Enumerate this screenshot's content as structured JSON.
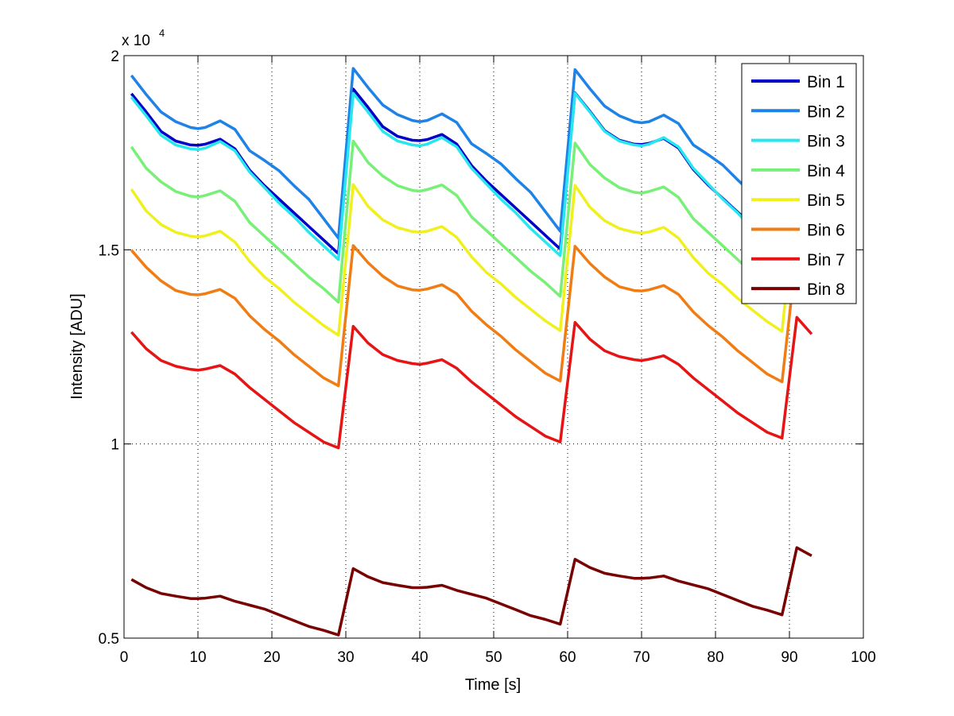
{
  "chart_data": {
    "type": "line",
    "title": "",
    "xlabel": "Time [s]",
    "ylabel": "Intensity [ADU]",
    "y_exponent_label": "x 10",
    "y_exponent_power": "4",
    "xlim": [
      0,
      100
    ],
    "ylim": [
      5000,
      20000
    ],
    "x_ticks": [
      0,
      10,
      20,
      30,
      40,
      50,
      60,
      70,
      80,
      90,
      100
    ],
    "x_tick_labels": [
      "0",
      "10",
      "20",
      "30",
      "40",
      "50",
      "60",
      "70",
      "80",
      "90",
      "100"
    ],
    "y_ticks": [
      5000,
      10000,
      15000,
      20000
    ],
    "y_tick_labels": [
      "0.5",
      "1",
      "1.5",
      "2"
    ],
    "grid": true,
    "legend_position": "top-right",
    "period_s": 30,
    "series": [
      {
        "name": "Bin 1",
        "color": "#0000c8",
        "cycle_points": [
          [
            0,
            19020
          ],
          [
            2,
            18550
          ],
          [
            4,
            18050
          ],
          [
            6,
            17800
          ],
          [
            8,
            17700
          ],
          [
            9,
            17690
          ],
          [
            10,
            17720
          ],
          [
            12,
            17850
          ],
          [
            14,
            17600
          ],
          [
            16,
            17050
          ],
          [
            18,
            16650
          ],
          [
            20,
            16300
          ],
          [
            22,
            15950
          ],
          [
            24,
            15600
          ],
          [
            26,
            15250
          ],
          [
            28,
            14900
          ],
          [
            29.5,
            14680
          ]
        ],
        "cycle_offsets": [
          0,
          120,
          20,
          0
        ]
      },
      {
        "name": "Bin 2",
        "color": "#1e82e6",
        "cycle_points": [
          [
            0,
            19490
          ],
          [
            2,
            19000
          ],
          [
            4,
            18550
          ],
          [
            6,
            18300
          ],
          [
            8,
            18150
          ],
          [
            9,
            18120
          ],
          [
            10,
            18150
          ],
          [
            12,
            18320
          ],
          [
            14,
            18100
          ],
          [
            16,
            17550
          ],
          [
            18,
            17300
          ],
          [
            20,
            17030
          ],
          [
            22,
            16650
          ],
          [
            24,
            16300
          ],
          [
            26,
            15800
          ],
          [
            28,
            15300
          ],
          [
            29.5,
            14970
          ]
        ],
        "cycle_offsets": [
          0,
          180,
          150,
          0
        ]
      },
      {
        "name": "Bin 3",
        "color": "#28e6f0",
        "cycle_points": [
          [
            0,
            18930
          ],
          [
            2,
            18450
          ],
          [
            4,
            17950
          ],
          [
            6,
            17700
          ],
          [
            8,
            17600
          ],
          [
            9,
            17580
          ],
          [
            10,
            17620
          ],
          [
            12,
            17790
          ],
          [
            14,
            17550
          ],
          [
            16,
            17000
          ],
          [
            18,
            16600
          ],
          [
            20,
            16200
          ],
          [
            22,
            15850
          ],
          [
            24,
            15450
          ],
          [
            26,
            15100
          ],
          [
            28,
            14750
          ],
          [
            29.5,
            14500
          ]
        ],
        "cycle_offsets": [
          0,
          100,
          100,
          0
        ]
      },
      {
        "name": "Bin 4",
        "color": "#78f078",
        "cycle_points": [
          [
            0,
            17650
          ],
          [
            2,
            17100
          ],
          [
            4,
            16750
          ],
          [
            6,
            16500
          ],
          [
            8,
            16380
          ],
          [
            9,
            16360
          ],
          [
            10,
            16400
          ],
          [
            12,
            16520
          ],
          [
            14,
            16250
          ],
          [
            16,
            15700
          ],
          [
            18,
            15350
          ],
          [
            20,
            15000
          ],
          [
            22,
            14650
          ],
          [
            24,
            14300
          ],
          [
            26,
            14000
          ],
          [
            28,
            13650
          ],
          [
            29.5,
            13450
          ]
        ],
        "cycle_offsets": [
          0,
          150,
          100,
          0
        ]
      },
      {
        "name": "Bin 5",
        "color": "#f0f01e",
        "cycle_points": [
          [
            0,
            16560
          ],
          [
            2,
            16000
          ],
          [
            4,
            15650
          ],
          [
            6,
            15450
          ],
          [
            8,
            15350
          ],
          [
            9,
            15330
          ],
          [
            10,
            15360
          ],
          [
            12,
            15480
          ],
          [
            14,
            15200
          ],
          [
            16,
            14700
          ],
          [
            18,
            14300
          ],
          [
            20,
            14000
          ],
          [
            22,
            13650
          ],
          [
            24,
            13350
          ],
          [
            26,
            13050
          ],
          [
            28,
            12800
          ],
          [
            29.5,
            12630
          ]
        ],
        "cycle_offsets": [
          0,
          120,
          100,
          0
        ]
      },
      {
        "name": "Bin 6",
        "color": "#f07d14",
        "cycle_points": [
          [
            0,
            14990
          ],
          [
            2,
            14550
          ],
          [
            4,
            14200
          ],
          [
            6,
            13950
          ],
          [
            8,
            13850
          ],
          [
            9,
            13840
          ],
          [
            10,
            13870
          ],
          [
            12,
            13980
          ],
          [
            14,
            13750
          ],
          [
            16,
            13300
          ],
          [
            18,
            12950
          ],
          [
            20,
            12650
          ],
          [
            22,
            12300
          ],
          [
            24,
            12000
          ],
          [
            26,
            11700
          ],
          [
            28,
            11500
          ],
          [
            29.5,
            11400
          ]
        ],
        "cycle_offsets": [
          0,
          120,
          100,
          0
        ]
      },
      {
        "name": "Bin 7",
        "color": "#e61414",
        "cycle_points": [
          [
            0,
            12880
          ],
          [
            2,
            12450
          ],
          [
            4,
            12150
          ],
          [
            6,
            12000
          ],
          [
            8,
            11920
          ],
          [
            9,
            11900
          ],
          [
            10,
            11930
          ],
          [
            12,
            12020
          ],
          [
            14,
            11800
          ],
          [
            16,
            11450
          ],
          [
            18,
            11150
          ],
          [
            20,
            10850
          ],
          [
            22,
            10550
          ],
          [
            24,
            10300
          ],
          [
            26,
            10050
          ],
          [
            28,
            9900
          ],
          [
            29.5,
            9810
          ]
        ],
        "cycle_offsets": [
          0,
          150,
          250,
          380
        ]
      },
      {
        "name": "Bin 8",
        "color": "#780000",
        "cycle_points": [
          [
            0,
            6510
          ],
          [
            2,
            6300
          ],
          [
            4,
            6150
          ],
          [
            6,
            6080
          ],
          [
            8,
            6020
          ],
          [
            9,
            6020
          ],
          [
            10,
            6030
          ],
          [
            12,
            6080
          ],
          [
            14,
            5950
          ],
          [
            16,
            5850
          ],
          [
            18,
            5750
          ],
          [
            20,
            5600
          ],
          [
            22,
            5450
          ],
          [
            24,
            5300
          ],
          [
            26,
            5200
          ],
          [
            28,
            5080
          ],
          [
            29.5,
            5040
          ]
        ],
        "cycle_offsets": [
          0,
          280,
          520,
          820
        ]
      }
    ],
    "cycles": [
      {
        "start": 1,
        "end": 30
      },
      {
        "start": 31,
        "end": 60
      },
      {
        "start": 61,
        "end": 90
      },
      {
        "start": 91,
        "end": 94
      }
    ]
  }
}
